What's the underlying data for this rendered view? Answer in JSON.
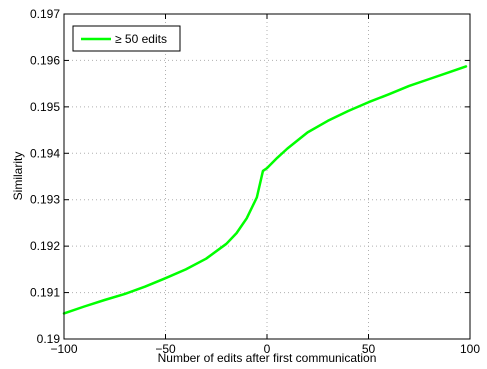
{
  "chart_data": {
    "type": "line",
    "title": "",
    "xlabel": "Number of edits after first communication",
    "ylabel": "Similarity",
    "xlim": [
      -100,
      100
    ],
    "ylim": [
      0.19,
      0.197
    ],
    "x_ticks": [
      -100,
      -50,
      0,
      50,
      100
    ],
    "x_tick_labels": [
      "−100",
      "−50",
      "0",
      "50",
      "100"
    ],
    "y_ticks": [
      0.19,
      0.191,
      0.192,
      0.193,
      0.194,
      0.195,
      0.196,
      0.197
    ],
    "y_tick_labels": [
      "0.19",
      "0.191",
      "0.192",
      "0.193",
      "0.194",
      "0.195",
      "0.196",
      "0.197"
    ],
    "grid": true,
    "legend_position": "top-left",
    "series": [
      {
        "name": "≥ 50 edits",
        "color": "#00ff00",
        "x": [
          -100,
          -90,
          -80,
          -70,
          -60,
          -50,
          -40,
          -30,
          -20,
          -15,
          -10,
          -5,
          -2,
          0,
          5,
          10,
          20,
          30,
          40,
          50,
          60,
          70,
          80,
          90,
          98
        ],
        "values": [
          0.19055,
          0.1907,
          0.19084,
          0.19097,
          0.19113,
          0.19131,
          0.1915,
          0.19173,
          0.19205,
          0.19228,
          0.1926,
          0.19305,
          0.19362,
          0.19368,
          0.1939,
          0.1941,
          0.19445,
          0.1947,
          0.19491,
          0.1951,
          0.19527,
          0.19545,
          0.1956,
          0.19575,
          0.19587
        ]
      }
    ]
  }
}
